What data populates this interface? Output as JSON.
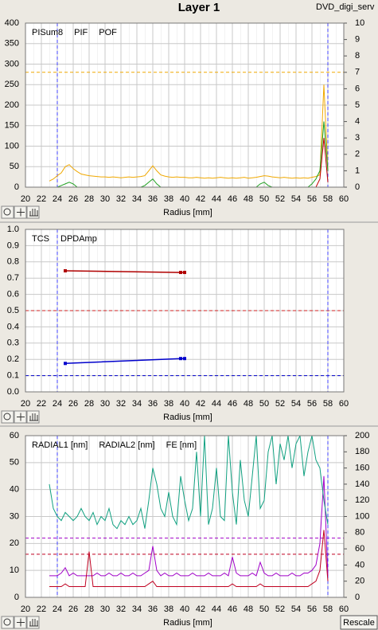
{
  "header": {
    "title": "Layer 1",
    "file": "DVD_digi_serv"
  },
  "toolbar": {
    "button": "Rescale"
  },
  "chart_data": [
    {
      "type": "line",
      "xlabel": "Radius [mm]",
      "grid": true,
      "xlim": [
        20,
        60
      ],
      "xticks": [
        20,
        22,
        24,
        26,
        28,
        30,
        32,
        34,
        36,
        38,
        40,
        42,
        44,
        46,
        48,
        50,
        52,
        54,
        56,
        58,
        60
      ],
      "ylim": [
        0,
        400
      ],
      "yticks": [
        0,
        50,
        100,
        150,
        200,
        250,
        300,
        350,
        400
      ],
      "y2lim": [
        0,
        10
      ],
      "y2ticks": [
        0,
        1,
        2,
        3,
        4,
        5,
        6,
        7,
        8,
        9,
        10
      ],
      "x": [
        23,
        23.5,
        24,
        24.5,
        25,
        25.5,
        26,
        26.5,
        27,
        27.5,
        28,
        28.5,
        29,
        29.5,
        30,
        30.5,
        31,
        31.5,
        32,
        32.5,
        33,
        33.5,
        34,
        34.5,
        35,
        35.5,
        36,
        36.5,
        37,
        37.5,
        38,
        38.5,
        39,
        39.5,
        40,
        40.5,
        41,
        41.5,
        42,
        42.5,
        43,
        43.5,
        44,
        44.5,
        45,
        45.5,
        46,
        46.5,
        47,
        47.5,
        48,
        48.5,
        49,
        49.5,
        50,
        50.5,
        51,
        51.5,
        52,
        52.5,
        53,
        53.5,
        54,
        54.5,
        55,
        55.5,
        56,
        56.5,
        57,
        57.5,
        58
      ],
      "series": [
        {
          "name": "PISum8",
          "color": "#f0a800",
          "axis": "y",
          "values": [
            15,
            20,
            28,
            35,
            50,
            55,
            45,
            38,
            32,
            30,
            28,
            27,
            26,
            25,
            25,
            24,
            25,
            24,
            23,
            24,
            25,
            24,
            25,
            26,
            28,
            40,
            52,
            40,
            30,
            27,
            25,
            24,
            25,
            24,
            24,
            23,
            23,
            24,
            23,
            22,
            23,
            22,
            23,
            24,
            23,
            22,
            23,
            22,
            23,
            24,
            22,
            23,
            24,
            26,
            28,
            27,
            25,
            24,
            23,
            24,
            23,
            22,
            23,
            22,
            23,
            22,
            24,
            26,
            30,
            250,
            40
          ]
        },
        {
          "name": "PIF",
          "color": "#20a020",
          "axis": "y2",
          "values": [
            0,
            0,
            0,
            0.1,
            0.2,
            0.3,
            0.2,
            0,
            0,
            0,
            0,
            0,
            0,
            0,
            0,
            0,
            0,
            0,
            0,
            0,
            0,
            0,
            0,
            0,
            0.1,
            0.3,
            0.5,
            0.2,
            0,
            0,
            0,
            0,
            0,
            0,
            0,
            0,
            0,
            0,
            0,
            0,
            0,
            0,
            0,
            0,
            0,
            0,
            0,
            0,
            0,
            0,
            0,
            0,
            0,
            0.2,
            0.3,
            0.1,
            0,
            0,
            0,
            0,
            0,
            0,
            0,
            0,
            0,
            0,
            0.2,
            0.5,
            1,
            4,
            1
          ]
        },
        {
          "name": "POF",
          "color": "#c00000",
          "axis": "y2",
          "values": [
            0,
            0,
            0,
            0,
            0,
            0,
            0,
            0,
            0,
            0,
            0,
            0,
            0,
            0,
            0,
            0,
            0,
            0,
            0,
            0,
            0,
            0,
            0,
            0,
            0,
            0,
            0,
            0,
            0,
            0,
            0,
            0,
            0,
            0,
            0,
            0,
            0,
            0,
            0,
            0,
            0,
            0,
            0,
            0,
            0,
            0,
            0,
            0,
            0,
            0,
            0,
            0,
            0,
            0,
            0,
            0,
            0,
            0,
            0,
            0,
            0,
            0,
            0,
            0,
            0,
            0,
            0,
            0,
            0.5,
            3,
            0.3
          ]
        }
      ],
      "hlines": [
        {
          "value": 280,
          "color": "#f0a800"
        }
      ],
      "vlines": [
        {
          "value": 24,
          "color": "#4040ff"
        },
        {
          "value": 58,
          "color": "#4040ff"
        }
      ]
    },
    {
      "type": "line",
      "xlabel": "Radius [mm]",
      "grid": true,
      "markers": true,
      "xlim": [
        20,
        60
      ],
      "xticks": [
        20,
        22,
        24,
        26,
        28,
        30,
        32,
        34,
        36,
        38,
        40,
        42,
        44,
        46,
        48,
        50,
        52,
        54,
        56,
        58,
        60
      ],
      "ylim": [
        0,
        1
      ],
      "yticks": [
        {
          "value": 0,
          "label": "0.0"
        },
        0.1,
        0.2,
        0.3,
        0.4,
        0.5,
        0.6,
        0.7,
        0.8,
        0.9,
        {
          "value": 1,
          "label": "1.0"
        }
      ],
      "x": [
        25,
        39.5,
        40
      ],
      "series": [
        {
          "name": "TCS",
          "color": "#0000cc",
          "axis": "y",
          "values": [
            0.175,
            0.205,
            0.205
          ]
        },
        {
          "name": "DPDAmp",
          "color": "#b00000",
          "axis": "y",
          "values": [
            0.745,
            0.735,
            0.735
          ]
        }
      ],
      "hlines": [
        {
          "value": 0.5,
          "color": "#d02020"
        },
        {
          "value": 0.1,
          "color": "#0000cc"
        }
      ],
      "vlines": [
        {
          "value": 24,
          "color": "#4040ff"
        },
        {
          "value": 58,
          "color": "#4040ff"
        }
      ]
    },
    {
      "type": "line",
      "xlabel": "Radius [mm]",
      "grid": true,
      "xlim": [
        20,
        60
      ],
      "xticks": [
        20,
        22,
        24,
        26,
        28,
        30,
        32,
        34,
        36,
        38,
        40,
        42,
        44,
        46,
        48,
        50,
        52,
        54,
        56,
        58,
        60
      ],
      "ylim": [
        0,
        60
      ],
      "yticks": [
        0,
        10,
        20,
        30,
        40,
        50,
        60
      ],
      "y2lim": [
        0,
        200
      ],
      "y2ticks": [
        0,
        20,
        40,
        60,
        80,
        100,
        120,
        140,
        160,
        180,
        200
      ],
      "x": [
        23,
        23.5,
        24,
        24.5,
        25,
        25.5,
        26,
        26.5,
        27,
        27.5,
        28,
        28.5,
        29,
        29.5,
        30,
        30.5,
        31,
        31.5,
        32,
        32.5,
        33,
        33.5,
        34,
        34.5,
        35,
        35.5,
        36,
        36.5,
        37,
        37.5,
        38,
        38.5,
        39,
        39.5,
        40,
        40.5,
        41,
        41.5,
        42,
        42.5,
        43,
        43.5,
        44,
        44.5,
        45,
        45.5,
        46,
        46.5,
        47,
        47.5,
        48,
        48.5,
        49,
        49.5,
        50,
        50.5,
        51,
        51.5,
        52,
        52.5,
        53,
        53.5,
        54,
        54.5,
        55,
        55.5,
        56,
        56.5,
        57,
        57.5,
        58
      ],
      "series": [
        {
          "name": "RADIAL1 [nm]",
          "color": "#a000c8",
          "axis": "y",
          "values": [
            8,
            8,
            8,
            9,
            11,
            8,
            9,
            8,
            8,
            8,
            8,
            8,
            9,
            8,
            8,
            9,
            8,
            8,
            9,
            8,
            8,
            9,
            8,
            8,
            9,
            10,
            19,
            10,
            8,
            9,
            8,
            8,
            9,
            8,
            8,
            8,
            9,
            8,
            8,
            8,
            9,
            8,
            8,
            8,
            9,
            8,
            15,
            9,
            8,
            8,
            8,
            9,
            8,
            13,
            9,
            8,
            8,
            9,
            8,
            8,
            8,
            9,
            8,
            8,
            9,
            9,
            10,
            12,
            20,
            45,
            8
          ]
        },
        {
          "name": "RADIAL2 [nm]",
          "color": "#c00020",
          "axis": "y",
          "values": [
            4,
            4,
            4,
            4,
            5,
            4,
            4,
            4,
            4,
            4,
            17,
            4,
            4,
            4,
            4,
            4,
            4,
            4,
            4,
            4,
            4,
            4,
            4,
            4,
            4,
            5,
            6,
            4,
            4,
            4,
            4,
            4,
            4,
            4,
            4,
            4,
            4,
            4,
            4,
            4,
            4,
            4,
            4,
            4,
            4,
            4,
            5,
            4,
            4,
            4,
            4,
            4,
            4,
            5,
            4,
            4,
            4,
            4,
            4,
            4,
            4,
            4,
            4,
            4,
            4,
            4,
            5,
            6,
            10,
            25,
            6
          ]
        },
        {
          "name": "FE [nm]",
          "color": "#10a080",
          "axis": "y2",
          "values": [
            140,
            110,
            100,
            95,
            105,
            100,
            95,
            100,
            110,
            100,
            95,
            105,
            90,
            100,
            95,
            110,
            90,
            85,
            95,
            90,
            100,
            90,
            95,
            110,
            85,
            120,
            160,
            140,
            110,
            100,
            130,
            100,
            90,
            150,
            120,
            95,
            110,
            180,
            100,
            200,
            90,
            110,
            160,
            100,
            95,
            200,
            130,
            90,
            170,
            120,
            100,
            150,
            200,
            110,
            120,
            180,
            200,
            140,
            190,
            170,
            200,
            160,
            190,
            200,
            150,
            180,
            200,
            170,
            160,
            120,
            90
          ]
        }
      ],
      "hlines": [
        {
          "value": 22,
          "color": "#a000c8"
        },
        {
          "value": 16,
          "color": "#c00020"
        }
      ],
      "vlines": [
        {
          "value": 24,
          "color": "#4040ff"
        },
        {
          "value": 58,
          "color": "#4040ff"
        }
      ]
    }
  ]
}
